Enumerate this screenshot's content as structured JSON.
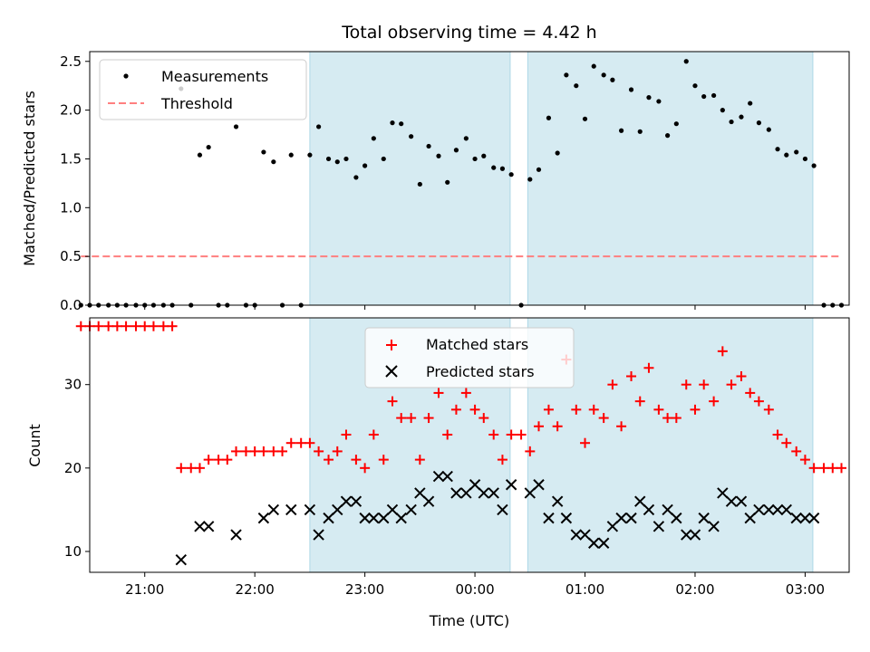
{
  "chart_data": {
    "type": "scatter",
    "title": "Total observing time = 4.42 h",
    "x_unit": "hours since 00:00 UTC",
    "shaded_intervals": [
      [
        -1.5,
        0.32
      ],
      [
        0.48,
        3.07
      ]
    ],
    "shade_color": "#add8e6",
    "xlabel": "Time (UTC)",
    "xlim": [
      -3.5,
      3.4
    ],
    "x_ticks": [
      {
        "value": -3,
        "label": "21:00"
      },
      {
        "value": -2,
        "label": "22:00"
      },
      {
        "value": -1,
        "label": "23:00"
      },
      {
        "value": 0,
        "label": "00:00"
      },
      {
        "value": 1,
        "label": "01:00"
      },
      {
        "value": 2,
        "label": "02:00"
      },
      {
        "value": 3,
        "label": "03:00"
      }
    ],
    "panels": [
      {
        "ylabel": "Matched/Predicted stars",
        "ylim": [
          0,
          2.6
        ],
        "y_ticks": [
          "0.0",
          "0.5",
          "1.0",
          "1.5",
          "2.0",
          "2.5"
        ],
        "legend_location": "upper-left",
        "series": [
          {
            "name": "Measurements",
            "marker": "dot",
            "color": "#000000",
            "points": [
              [
                -3.58,
                0
              ],
              [
                -3.5,
                0
              ],
              [
                -3.42,
                0
              ],
              [
                -3.33,
                0
              ],
              [
                -3.25,
                0
              ],
              [
                -3.17,
                0
              ],
              [
                -3.08,
                0
              ],
              [
                -3.0,
                0
              ],
              [
                -2.92,
                0
              ],
              [
                -2.83,
                0
              ],
              [
                -2.75,
                0
              ],
              [
                -2.67,
                2.22
              ],
              [
                -2.58,
                0
              ],
              [
                -2.5,
                1.54
              ],
              [
                -2.42,
                1.62
              ],
              [
                -2.33,
                0
              ],
              [
                -2.25,
                0
              ],
              [
                -2.17,
                1.83
              ],
              [
                -2.08,
                0
              ],
              [
                -2.0,
                0
              ],
              [
                -1.92,
                1.57
              ],
              [
                -1.83,
                1.47
              ],
              [
                -1.75,
                0
              ],
              [
                -1.67,
                1.54
              ],
              [
                -1.58,
                0
              ],
              [
                -1.5,
                1.54
              ],
              [
                -1.42,
                1.83
              ],
              [
                -1.33,
                1.5
              ],
              [
                -1.25,
                1.47
              ],
              [
                -1.17,
                1.5
              ],
              [
                -1.08,
                1.31
              ],
              [
                -1.0,
                1.43
              ],
              [
                -0.92,
                1.71
              ],
              [
                -0.83,
                1.5
              ],
              [
                -0.75,
                1.87
              ],
              [
                -0.67,
                1.86
              ],
              [
                -0.58,
                1.73
              ],
              [
                -0.5,
                1.24
              ],
              [
                -0.42,
                1.63
              ],
              [
                -0.33,
                1.53
              ],
              [
                -0.25,
                1.26
              ],
              [
                -0.17,
                1.59
              ],
              [
                -0.08,
                1.71
              ],
              [
                0.0,
                1.5
              ],
              [
                0.08,
                1.53
              ],
              [
                0.17,
                1.41
              ],
              [
                0.25,
                1.4
              ],
              [
                0.33,
                1.34
              ],
              [
                0.42,
                0
              ],
              [
                0.5,
                1.29
              ],
              [
                0.58,
                1.39
              ],
              [
                0.67,
                1.92
              ],
              [
                0.75,
                1.56
              ],
              [
                0.83,
                2.36
              ],
              [
                0.92,
                2.25
              ],
              [
                1.0,
                1.91
              ],
              [
                1.08,
                2.45
              ],
              [
                1.17,
                2.36
              ],
              [
                1.25,
                2.31
              ],
              [
                1.33,
                1.79
              ],
              [
                1.42,
                2.21
              ],
              [
                1.5,
                1.78
              ],
              [
                1.58,
                2.13
              ],
              [
                1.67,
                2.09
              ],
              [
                1.75,
                1.74
              ],
              [
                1.83,
                1.86
              ],
              [
                1.92,
                2.5
              ],
              [
                2.0,
                2.25
              ],
              [
                2.08,
                2.14
              ],
              [
                2.17,
                2.15
              ],
              [
                2.25,
                2.0
              ],
              [
                2.33,
                1.88
              ],
              [
                2.42,
                1.93
              ],
              [
                2.5,
                2.07
              ],
              [
                2.58,
                1.87
              ],
              [
                2.67,
                1.8
              ],
              [
                2.75,
                1.6
              ],
              [
                2.83,
                1.54
              ],
              [
                2.92,
                1.57
              ],
              [
                3.0,
                1.5
              ],
              [
                3.08,
                1.43
              ],
              [
                3.17,
                0
              ],
              [
                3.25,
                0
              ],
              [
                3.33,
                0
              ]
            ]
          },
          {
            "name": "Threshold",
            "marker": "dashed-line",
            "color": "#ff7f7f",
            "points": [
              [
                -3.58,
                0.5
              ],
              [
                3.33,
                0.5
              ]
            ]
          }
        ]
      },
      {
        "ylabel": "Count",
        "ylim": [
          7.5,
          38
        ],
        "y_ticks": [
          "10",
          "20",
          "30"
        ],
        "legend_location": "upper-center",
        "series": [
          {
            "name": "Matched stars",
            "marker": "plus",
            "color": "#ff0000",
            "points": [
              [
                -3.58,
                37
              ],
              [
                -3.5,
                37
              ],
              [
                -3.42,
                37
              ],
              [
                -3.33,
                37
              ],
              [
                -3.25,
                37
              ],
              [
                -3.17,
                37
              ],
              [
                -3.08,
                37
              ],
              [
                -3.0,
                37
              ],
              [
                -2.92,
                37
              ],
              [
                -2.83,
                37
              ],
              [
                -2.75,
                37
              ],
              [
                -2.67,
                20
              ],
              [
                -2.58,
                20
              ],
              [
                -2.5,
                20
              ],
              [
                -2.42,
                21
              ],
              [
                -2.33,
                21
              ],
              [
                -2.25,
                21
              ],
              [
                -2.17,
                22
              ],
              [
                -2.08,
                22
              ],
              [
                -2.0,
                22
              ],
              [
                -1.92,
                22
              ],
              [
                -1.83,
                22
              ],
              [
                -1.75,
                22
              ],
              [
                -1.67,
                23
              ],
              [
                -1.58,
                23
              ],
              [
                -1.5,
                23
              ],
              [
                -1.42,
                22
              ],
              [
                -1.33,
                21
              ],
              [
                -1.25,
                22
              ],
              [
                -1.17,
                24
              ],
              [
                -1.08,
                21
              ],
              [
                -1.0,
                20
              ],
              [
                -0.92,
                24
              ],
              [
                -0.83,
                21
              ],
              [
                -0.75,
                28
              ],
              [
                -0.67,
                26
              ],
              [
                -0.58,
                26
              ],
              [
                -0.5,
                21
              ],
              [
                -0.42,
                26
              ],
              [
                -0.33,
                29
              ],
              [
                -0.25,
                24
              ],
              [
                -0.17,
                27
              ],
              [
                -0.08,
                29
              ],
              [
                0.0,
                27
              ],
              [
                0.08,
                26
              ],
              [
                0.17,
                24
              ],
              [
                0.25,
                21
              ],
              [
                0.33,
                24
              ],
              [
                0.42,
                24
              ],
              [
                0.5,
                22
              ],
              [
                0.58,
                25
              ],
              [
                0.67,
                27
              ],
              [
                0.75,
                25
              ],
              [
                0.83,
                33
              ],
              [
                0.92,
                27
              ],
              [
                1.0,
                23
              ],
              [
                1.08,
                27
              ],
              [
                1.17,
                26
              ],
              [
                1.25,
                30
              ],
              [
                1.33,
                25
              ],
              [
                1.42,
                31
              ],
              [
                1.5,
                28
              ],
              [
                1.58,
                32
              ],
              [
                1.67,
                27
              ],
              [
                1.75,
                26
              ],
              [
                1.83,
                26
              ],
              [
                1.92,
                30
              ],
              [
                2.0,
                27
              ],
              [
                2.08,
                30
              ],
              [
                2.17,
                28
              ],
              [
                2.25,
                34
              ],
              [
                2.33,
                30
              ],
              [
                2.42,
                31
              ],
              [
                2.5,
                29
              ],
              [
                2.58,
                28
              ],
              [
                2.67,
                27
              ],
              [
                2.75,
                24
              ],
              [
                2.83,
                23
              ],
              [
                2.92,
                22
              ],
              [
                3.0,
                21
              ],
              [
                3.08,
                20
              ],
              [
                3.17,
                20
              ],
              [
                3.25,
                20
              ],
              [
                3.33,
                20
              ]
            ]
          },
          {
            "name": "Predicted stars",
            "marker": "x",
            "color": "#000000",
            "points": [
              [
                -2.67,
                9
              ],
              [
                -2.5,
                13
              ],
              [
                -2.42,
                13
              ],
              [
                -2.17,
                12
              ],
              [
                -1.92,
                14
              ],
              [
                -1.83,
                15
              ],
              [
                -1.67,
                15
              ],
              [
                -1.5,
                15
              ],
              [
                -1.42,
                12
              ],
              [
                -1.33,
                14
              ],
              [
                -1.25,
                15
              ],
              [
                -1.17,
                16
              ],
              [
                -1.08,
                16
              ],
              [
                -1.0,
                14
              ],
              [
                -0.92,
                14
              ],
              [
                -0.83,
                14
              ],
              [
                -0.75,
                15
              ],
              [
                -0.67,
                14
              ],
              [
                -0.58,
                15
              ],
              [
                -0.5,
                17
              ],
              [
                -0.42,
                16
              ],
              [
                -0.33,
                19
              ],
              [
                -0.25,
                19
              ],
              [
                -0.17,
                17
              ],
              [
                -0.08,
                17
              ],
              [
                0.0,
                18
              ],
              [
                0.08,
                17
              ],
              [
                0.17,
                17
              ],
              [
                0.25,
                15
              ],
              [
                0.33,
                18
              ],
              [
                0.5,
                17
              ],
              [
                0.58,
                18
              ],
              [
                0.67,
                14
              ],
              [
                0.75,
                16
              ],
              [
                0.83,
                14
              ],
              [
                0.92,
                12
              ],
              [
                1.0,
                12
              ],
              [
                1.08,
                11
              ],
              [
                1.17,
                11
              ],
              [
                1.25,
                13
              ],
              [
                1.33,
                14
              ],
              [
                1.42,
                14
              ],
              [
                1.5,
                16
              ],
              [
                1.58,
                15
              ],
              [
                1.67,
                13
              ],
              [
                1.75,
                15
              ],
              [
                1.83,
                14
              ],
              [
                1.92,
                12
              ],
              [
                2.0,
                12
              ],
              [
                2.08,
                14
              ],
              [
                2.17,
                13
              ],
              [
                2.25,
                17
              ],
              [
                2.33,
                16
              ],
              [
                2.42,
                16
              ],
              [
                2.5,
                14
              ],
              [
                2.58,
                15
              ],
              [
                2.67,
                15
              ],
              [
                2.75,
                15
              ],
              [
                2.83,
                15
              ],
              [
                2.92,
                14
              ],
              [
                3.0,
                14
              ],
              [
                3.08,
                14
              ]
            ]
          }
        ]
      }
    ]
  }
}
